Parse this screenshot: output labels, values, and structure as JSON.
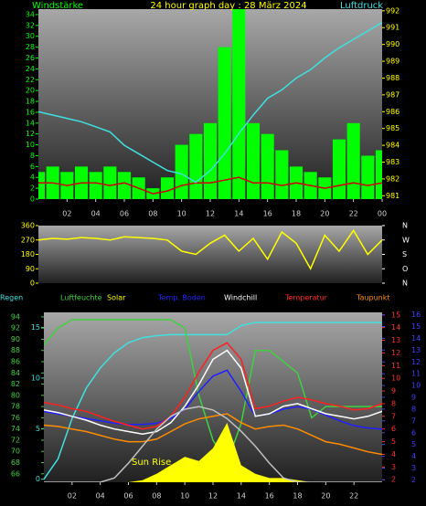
{
  "chart_data": [
    {
      "type": "line",
      "title": "24 hour graph day : 28 März 2024",
      "ylabel": "Windstärke",
      "y2label": "Luftdruck",
      "x": [
        0,
        1,
        2,
        3,
        4,
        5,
        6,
        7,
        8,
        9,
        10,
        11,
        12,
        13,
        14,
        15,
        16,
        17,
        18,
        19,
        20,
        21,
        22,
        23,
        24
      ],
      "xlim": [
        0,
        24
      ],
      "xticks": [
        {
          "value": 2,
          "label": "02"
        },
        {
          "value": 4,
          "label": "04"
        },
        {
          "value": 6,
          "label": "06"
        },
        {
          "value": 8,
          "label": "08"
        },
        10,
        12,
        14,
        16,
        18,
        20,
        22,
        {
          "value": 24,
          "label": "00"
        }
      ],
      "ylim": [
        0,
        35
      ],
      "yticks": [
        0,
        2,
        4,
        6,
        8,
        10,
        12,
        14,
        16,
        18,
        20,
        22,
        24,
        26,
        28,
        30,
        32,
        34
      ],
      "y2lim": [
        980.8,
        992.1
      ],
      "y2ticks": [
        981,
        982,
        983,
        984,
        985,
        986,
        987,
        988,
        989,
        990,
        991,
        992
      ],
      "series": [
        {
          "type": "bar",
          "color": "#00ff00",
          "values": [
            5,
            6,
            5,
            6,
            5,
            6,
            5,
            4,
            2,
            4,
            10,
            12,
            14,
            28,
            35,
            14,
            12,
            9,
            6,
            5,
            4,
            11,
            14,
            8,
            9
          ]
        },
        {
          "color": "#d00000",
          "values": [
            3,
            3,
            2.5,
            3,
            3,
            2.5,
            3,
            2,
            1,
            1.5,
            2.5,
            3,
            3,
            3.5,
            4,
            3,
            3,
            2.5,
            3,
            2.5,
            2,
            2.5,
            3,
            2.5,
            3
          ]
        },
        {
          "color": "#40e0e0",
          "axis": "y2",
          "values": [
            986,
            985.8,
            985.6,
            985.4,
            985.1,
            984.8,
            984,
            983.5,
            983,
            982.5,
            982.3,
            981.8,
            982.5,
            983.5,
            984.7,
            985.8,
            986.8,
            987.3,
            988,
            988.5,
            989.2,
            989.8,
            990.3,
            990.8,
            991.3
          ]
        }
      ]
    },
    {
      "type": "line",
      "x": [
        0,
        1,
        2,
        3,
        4,
        5,
        6,
        7,
        8,
        9,
        10,
        11,
        12,
        13,
        14,
        15,
        16,
        17,
        18,
        19,
        20,
        21,
        22,
        23,
        24
      ],
      "xlim": [
        0,
        24
      ],
      "ylim": [
        0,
        360
      ],
      "yticks": [
        0,
        90,
        180,
        270,
        360
      ],
      "y2ticks": [
        {
          "value": 360,
          "label": "N"
        },
        {
          "value": 270,
          "label": "W"
        },
        {
          "value": 180,
          "label": "S"
        },
        {
          "value": 90,
          "label": "O"
        },
        {
          "value": 0,
          "label": "N"
        }
      ],
      "series": [
        {
          "color": "#ffff00",
          "values": [
            270,
            280,
            275,
            285,
            280,
            270,
            290,
            285,
            280,
            270,
            200,
            180,
            250,
            300,
            200,
            280,
            150,
            320,
            250,
            90,
            300,
            200,
            330,
            180,
            270
          ]
        }
      ]
    },
    {
      "type": "line",
      "annotation": "Sun Rise",
      "x": [
        0,
        1,
        2,
        3,
        4,
        5,
        6,
        7,
        8,
        9,
        10,
        11,
        12,
        13,
        14,
        15,
        16,
        17,
        18,
        19,
        20,
        21,
        22,
        23,
        24
      ],
      "xlim": [
        0,
        24
      ],
      "xticks": [
        {
          "value": 2,
          "label": "02"
        },
        {
          "value": 4,
          "label": "04"
        },
        {
          "value": 6,
          "label": "06"
        },
        {
          "value": 8,
          "label": "08"
        },
        10,
        12,
        14,
        16,
        18,
        20,
        22
      ],
      "axes": [
        {
          "color": "#40e0e0",
          "ylim": [
            -0.3,
            16.5
          ],
          "yticks": [
            0,
            5,
            10,
            15
          ]
        },
        {
          "color": "#40d040",
          "ylim": [
            64.5,
            94.8
          ],
          "yticks": [
            66,
            68,
            70,
            72,
            74,
            76,
            78,
            80,
            82,
            84,
            86,
            88,
            90,
            92,
            94
          ]
        },
        {
          "color": "#ff3030",
          "ylim": [
            1.8,
            15.2
          ],
          "yticks": [
            2,
            3,
            4,
            5,
            6,
            7,
            8,
            9,
            10,
            11,
            12,
            13,
            14,
            15
          ]
        },
        {
          "color": "#4040ff",
          "ylim": [
            1.8,
            16.2
          ],
          "yticks": [
            2,
            3,
            4,
            5,
            6,
            7,
            8,
            9,
            10,
            11,
            12,
            13,
            14,
            15,
            16
          ]
        },
        {
          "ylim": [
            0,
            400
          ]
        }
      ],
      "series": [
        {
          "name": "Regen",
          "color": "#40e0e0",
          "axis": 0,
          "values": [
            0,
            2,
            6,
            9,
            11,
            12.5,
            13.5,
            14,
            14.2,
            14.3,
            14.3,
            14.3,
            14.3,
            14.3,
            15.2,
            15.5,
            15.5,
            15.5,
            15.5,
            15.5,
            15.5,
            15.5,
            15.5,
            15.5,
            15.5
          ]
        },
        {
          "name": "Luftfeuchte",
          "color": "#40d040",
          "axis": 1,
          "values": [
            89,
            92,
            93.5,
            93.5,
            93.5,
            93.5,
            93.5,
            93.5,
            93.5,
            93.5,
            92,
            80,
            72,
            68,
            75,
            88,
            88,
            86,
            84,
            76,
            78,
            78,
            78,
            78,
            78
          ]
        },
        {
          "name": "Solar",
          "color": "#ffff00",
          "type": "area",
          "axis": 4,
          "values": [
            0,
            0,
            0,
            0,
            0,
            0,
            0,
            5,
            20,
            40,
            60,
            50,
            80,
            140,
            40,
            20,
            10,
            10,
            5,
            0,
            0,
            0,
            0,
            0,
            0
          ]
        },
        {
          "name": "Temp. Boden",
          "color": "#2020ff",
          "axis": 3,
          "values": [
            7.8,
            7.6,
            7.4,
            7.2,
            7,
            6.8,
            6.7,
            6.7,
            6.8,
            7.2,
            8,
            9.5,
            10.8,
            11.3,
            9.5,
            7.4,
            7.6,
            8,
            8.2,
            8,
            7.5,
            7,
            6.6,
            6.4,
            6.3
          ]
        },
        {
          "name": "Windchill",
          "color": "#ffffff",
          "axis": 2,
          "values": [
            7.5,
            7.3,
            7,
            6.7,
            6.3,
            6,
            5.8,
            5.6,
            5.8,
            6.5,
            7.8,
            9.5,
            11.5,
            12.2,
            10.8,
            7,
            7.2,
            7.8,
            8,
            7.6,
            7.2,
            7,
            6.8,
            7,
            7.4
          ]
        },
        {
          "name": "Temperatur",
          "color": "#ff2020",
          "axis": 2,
          "values": [
            8.1,
            7.9,
            7.6,
            7.4,
            7,
            6.6,
            6.3,
            6,
            6.2,
            7,
            8.5,
            10.5,
            12.2,
            12.8,
            11.5,
            7.6,
            7.8,
            8.2,
            8.5,
            8.3,
            8,
            7.8,
            7.5,
            7.6,
            8
          ]
        },
        {
          "name": "Taupunkt",
          "color": "#ff8c00",
          "axis": 2,
          "values": [
            6.3,
            6.2,
            6,
            5.8,
            5.5,
            5.2,
            5,
            5,
            5.2,
            5.8,
            6.4,
            6.8,
            7,
            7.2,
            6.5,
            6,
            6.2,
            6.3,
            6,
            5.5,
            5,
            4.8,
            4.5,
            4.2,
            4
          ]
        },
        {
          "color": "#c0c0c0",
          "axis": 4,
          "values": [
            0,
            0,
            0,
            0,
            0,
            10,
            45,
            85,
            125,
            155,
            172,
            178,
            170,
            150,
            120,
            85,
            45,
            10,
            0,
            0,
            0,
            0,
            0,
            0,
            0
          ]
        }
      ]
    }
  ]
}
